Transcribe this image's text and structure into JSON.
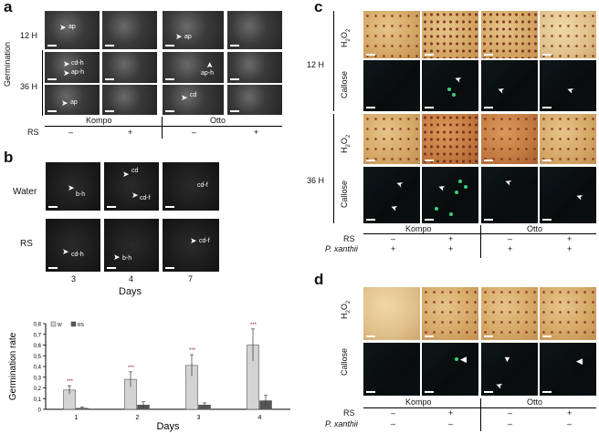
{
  "panels": {
    "a": {
      "letter": "a",
      "side_label": "Germination",
      "row_labels": [
        "12 H",
        "36 H"
      ],
      "cultivars": [
        "Kompo",
        "Otto"
      ],
      "rs_label": "RS",
      "treatments": [
        "–",
        "+",
        "–",
        "+"
      ],
      "annotations": [
        "ap",
        "ap",
        "cd-h",
        "ap-h",
        "ap",
        "ap-h",
        "cd"
      ]
    },
    "b": {
      "letter": "b",
      "row_labels": [
        "Water",
        "RS"
      ],
      "days": [
        "3",
        "4",
        "7"
      ],
      "xaxis_title": "Days",
      "annotations": [
        "b-h",
        "cd",
        "cd-f",
        "cd-f",
        "cd-h",
        "b-h",
        "cd-f"
      ]
    },
    "c": {
      "letter": "c",
      "time_labels": [
        "12 H",
        "36 H"
      ],
      "stain_labels": [
        "H2O2",
        "Callose"
      ],
      "cultivars": [
        "Kompo",
        "Otto"
      ],
      "rs_label": "RS",
      "pathogen_label": "P. xanthii",
      "rs_values": [
        "–",
        "+",
        "–",
        "+"
      ],
      "pathogen_values": [
        "+",
        "+",
        "+",
        "+"
      ]
    },
    "d": {
      "letter": "d",
      "stain_labels": [
        "H2O2",
        "Callose"
      ],
      "cultivars": [
        "Kompo",
        "Otto"
      ],
      "rs_label": "RS",
      "pathogen_label": "P. xanthii",
      "rs_values": [
        "–",
        "+",
        "–",
        "+"
      ],
      "pathogen_values": [
        "–",
        "–",
        "–",
        "–"
      ]
    }
  },
  "chart_data": {
    "type": "bar",
    "categories": [
      "1",
      "2",
      "3",
      "4"
    ],
    "series": [
      {
        "name": "W",
        "values": [
          0.18,
          0.28,
          0.41,
          0.6
        ],
        "errors": [
          0.04,
          0.07,
          0.1,
          0.15
        ],
        "color": "#d3d3d3"
      },
      {
        "name": "RS",
        "values": [
          0.01,
          0.04,
          0.04,
          0.08
        ],
        "errors": [
          0.01,
          0.03,
          0.02,
          0.05
        ],
        "color": "#555555"
      }
    ],
    "significance": [
      "***",
      "***",
      "***",
      "***"
    ],
    "xlabel": "Days",
    "ylabel": "Germination rate",
    "ylim": [
      0,
      0.8
    ],
    "yticks": [
      "0",
      "0,1",
      "0,2",
      "0,3",
      "0,4",
      "0,5",
      "0,6",
      "0,7",
      "0,8"
    ],
    "legend_position": "top-left",
    "grid": false
  }
}
